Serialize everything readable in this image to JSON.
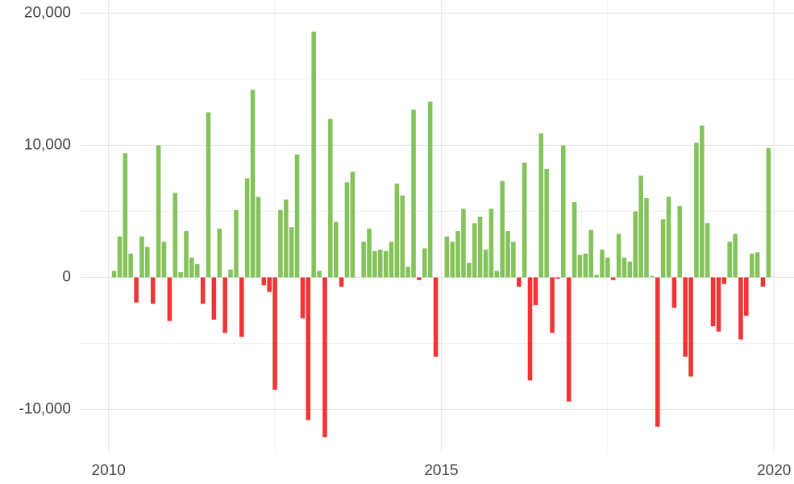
{
  "chart_data": {
    "type": "bar",
    "x": [
      2010.083,
      2010.167,
      2010.25,
      2010.333,
      2010.417,
      2010.5,
      2010.583,
      2010.667,
      2010.75,
      2010.833,
      2010.917,
      2011,
      2011.083,
      2011.167,
      2011.25,
      2011.333,
      2011.417,
      2011.5,
      2011.583,
      2011.667,
      2011.75,
      2011.833,
      2011.917,
      2012,
      2012.083,
      2012.167,
      2012.25,
      2012.333,
      2012.417,
      2012.5,
      2012.583,
      2012.667,
      2012.75,
      2012.833,
      2012.917,
      2013,
      2013.083,
      2013.167,
      2013.25,
      2013.333,
      2013.417,
      2013.5,
      2013.583,
      2013.667,
      2013.75,
      2013.833,
      2013.917,
      2014,
      2014.083,
      2014.167,
      2014.25,
      2014.333,
      2014.417,
      2014.5,
      2014.583,
      2014.667,
      2014.75,
      2014.833,
      2014.917,
      2015,
      2015.083,
      2015.167,
      2015.25,
      2015.333,
      2015.417,
      2015.5,
      2015.583,
      2015.667,
      2015.75,
      2015.833,
      2015.917,
      2016,
      2016.083,
      2016.167,
      2016.25,
      2016.333,
      2016.417,
      2016.5,
      2016.583,
      2016.667,
      2016.75,
      2016.833,
      2016.917,
      2017,
      2017.083,
      2017.167,
      2017.25,
      2017.333,
      2017.417,
      2017.5,
      2017.583,
      2017.667,
      2017.75,
      2017.833,
      2017.917,
      2018,
      2018.083,
      2018.167,
      2018.25,
      2018.333,
      2018.417,
      2018.5,
      2018.583,
      2018.667,
      2018.75,
      2018.833,
      2018.917,
      2019,
      2019.083,
      2019.167,
      2019.25,
      2019.333,
      2019.417,
      2019.5,
      2019.583,
      2019.667,
      2019.75,
      2019.833,
      2019.917
    ],
    "values": [
      500,
      3100,
      9400,
      1800,
      -1900,
      3100,
      2300,
      -2000,
      10000,
      2700,
      -3300,
      6400,
      400,
      3500,
      1500,
      1000,
      -2000,
      12500,
      -3200,
      3700,
      -4200,
      600,
      5100,
      -4500,
      7500,
      14200,
      6100,
      -600,
      -1100,
      -8500,
      5100,
      5900,
      3800,
      9300,
      -3100,
      -10800,
      18600,
      500,
      -12100,
      12000,
      4200,
      -700,
      7200,
      8000,
      0,
      2700,
      3700,
      2000,
      2100,
      2000,
      2700,
      7100,
      6200,
      800,
      12700,
      -200,
      2200,
      13300,
      -6000,
      0,
      3100,
      2700,
      3500,
      5200,
      1100,
      4100,
      4600,
      2100,
      5200,
      500,
      7300,
      3500,
      2700,
      -700,
      8700,
      -7800,
      -2100,
      10900,
      8200,
      -4200,
      -100,
      10000,
      -9400,
      5700,
      1700,
      1800,
      3600,
      200,
      2100,
      1500,
      -200,
      3300,
      1500,
      1200,
      5000,
      7700,
      6000,
      100,
      -11300,
      4400,
      6100,
      -2300,
      5400,
      -6000,
      -7500,
      10200,
      11500,
      4100,
      -3700,
      -4100,
      -500,
      2700,
      3300,
      -4700,
      -2900,
      1800,
      1900,
      -700,
      9800
    ],
    "positive_color": "#84c25a",
    "negative_color": "#f23434",
    "xlim": [
      2009.58,
      2020.3
    ],
    "xticks": [
      2010,
      2015,
      2020
    ],
    "xminor_ticks": [
      2012.5,
      2017.5
    ],
    "ylim": [
      -13200,
      21000
    ],
    "yticks": [
      {
        "value": -10000,
        "label": "-10,000"
      },
      0,
      {
        "value": 10000,
        "label": "10,000"
      },
      {
        "value": 20000,
        "label": "20,000"
      }
    ],
    "yminor_ticks": [
      -5000,
      5000,
      15000
    ],
    "grid": true
  }
}
